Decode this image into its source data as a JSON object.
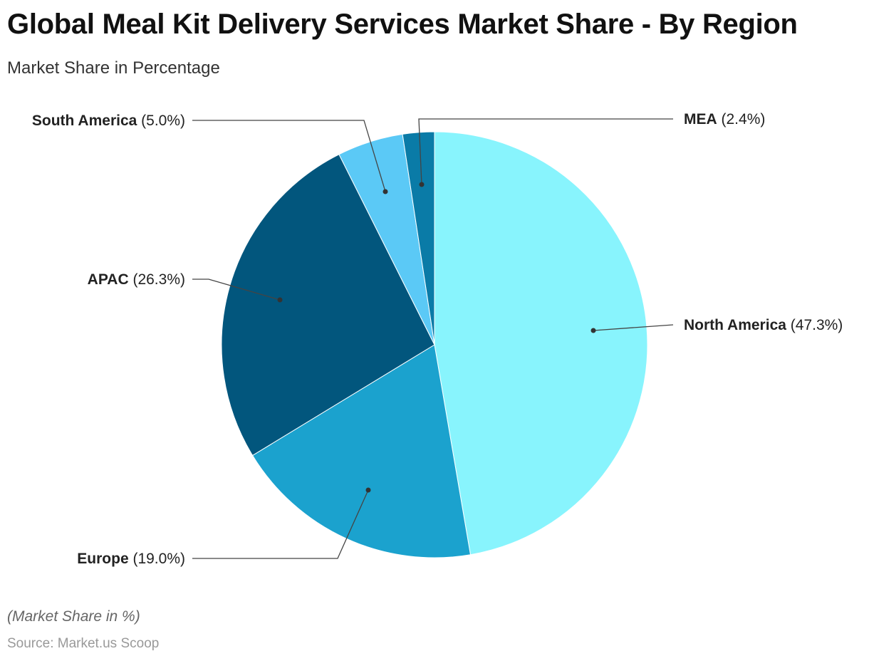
{
  "title": "Global Meal Kit Delivery Services Market Share - By Region",
  "subtitle": "Market Share in Percentage",
  "note": "(Market Share in %)",
  "source": "Source: Market.us Scoop",
  "chart_data": {
    "type": "pie",
    "title": "Global Meal Kit Delivery Services Market Share - By Region",
    "subtitle": "Market Share in Percentage",
    "unit": "%",
    "start": "top, clockwise",
    "slices": [
      {
        "label": "North America",
        "value": 47.3,
        "color": "#88F4FD"
      },
      {
        "label": "Europe",
        "value": 19.0,
        "color": "#1BA2CE"
      },
      {
        "label": "APAC",
        "value": 26.3,
        "color": "#02567D"
      },
      {
        "label": "South America",
        "value": 5.0,
        "color": "#5BC9F6"
      },
      {
        "label": "MEA",
        "value": 2.4,
        "color": "#0A7BA7"
      }
    ]
  }
}
